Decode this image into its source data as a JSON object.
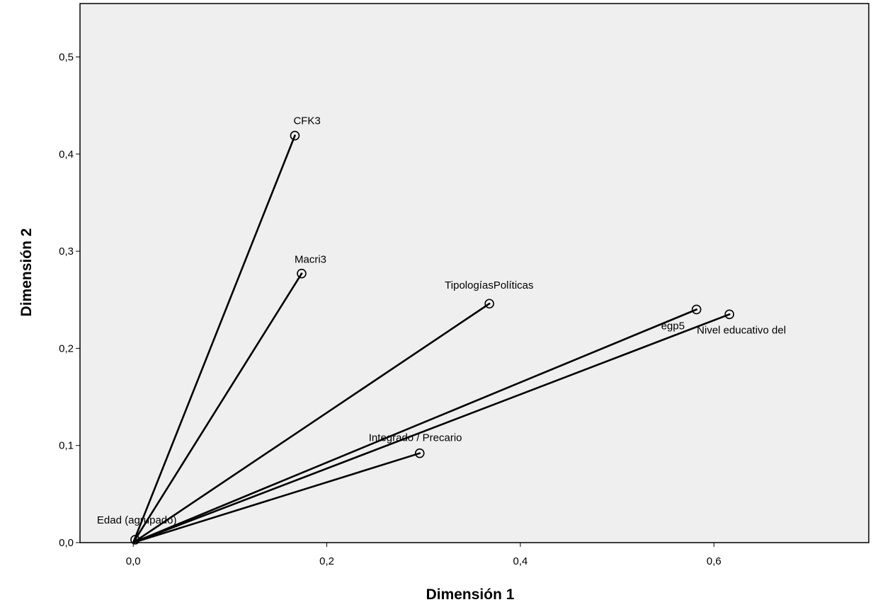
{
  "chart_data": {
    "type": "scatter",
    "subtype": "loading-vectors",
    "xlabel": "Dimensión 1",
    "ylabel": "Dimensión 2",
    "xlim": [
      -0.055,
      0.76
    ],
    "ylim": [
      0.0,
      0.555
    ],
    "xticks": [
      0.0,
      0.2,
      0.4,
      0.6
    ],
    "yticks": [
      0.0,
      0.1,
      0.2,
      0.3,
      0.4,
      0.5
    ],
    "xtick_labels": [
      "0,0",
      "0,2",
      "0,4",
      "0,6"
    ],
    "ytick_labels": [
      "0,0",
      "0,1",
      "0,2",
      "0,3",
      "0,4",
      "0,5"
    ],
    "origin": [
      0.0,
      0.0
    ],
    "grid": false,
    "legend": "none",
    "plot_background": "#efefef",
    "line_color": "#000000",
    "points": [
      {
        "label": "CFK3",
        "x": 0.167,
        "y": 0.419
      },
      {
        "label": "Macri3",
        "x": 0.174,
        "y": 0.277
      },
      {
        "label": "TipologíasPolíticas",
        "x": 0.368,
        "y": 0.246
      },
      {
        "label": "egp5",
        "x": 0.582,
        "y": 0.24
      },
      {
        "label": "Nivel educativo del",
        "x": 0.616,
        "y": 0.235
      },
      {
        "label": "Integrado / Precario",
        "x": 0.296,
        "y": 0.092
      },
      {
        "label": "Edad (agrupado)",
        "x": 0.002,
        "y": 0.003
      }
    ]
  }
}
